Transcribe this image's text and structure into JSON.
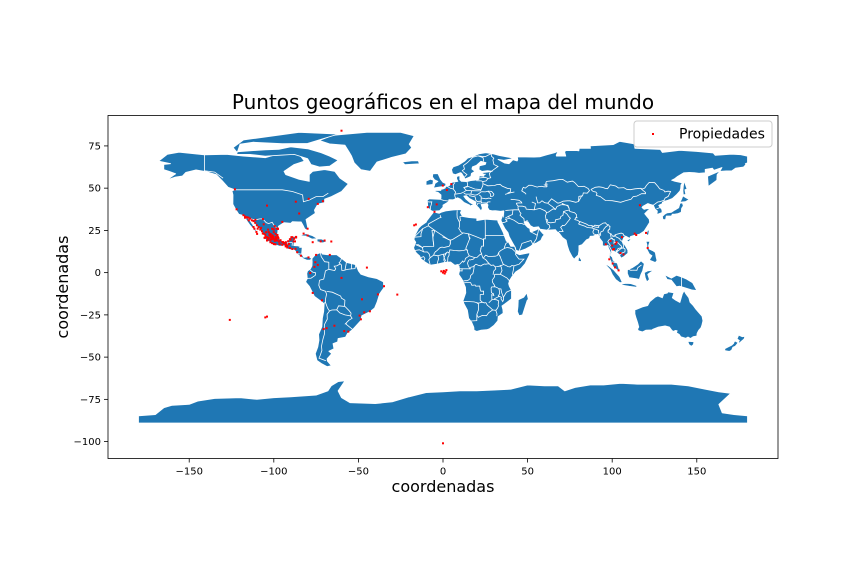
{
  "chart_data": {
    "type": "scatter",
    "title": "Puntos geográficos en el mapa del mundo",
    "xlabel": "coordenadas",
    "ylabel": "coordenadas",
    "xlim": [
      -198,
      198
    ],
    "ylim": [
      -110,
      93
    ],
    "x_ticks": [
      -150,
      -100,
      -50,
      0,
      50,
      100,
      150
    ],
    "y_ticks": [
      75,
      50,
      25,
      0,
      -25,
      -50,
      -75,
      -100
    ],
    "legend": {
      "placement": "top-right",
      "label": "Propiedades"
    },
    "colors": {
      "land": "#1f77b4",
      "borders": "#ffffff",
      "points": "#ff0000"
    },
    "base_map": "world-country-polygons",
    "series": [
      {
        "name": "Propiedades",
        "points": [
          [
            -101,
            21
          ],
          [
            -102,
            22
          ],
          [
            -99,
            19.5
          ],
          [
            -100,
            20
          ],
          [
            -103,
            20.5
          ],
          [
            -98,
            19
          ],
          [
            -100.5,
            21.5
          ],
          [
            -101.5,
            20.2
          ],
          [
            -99.5,
            18.8
          ],
          [
            -98.5,
            20.5
          ],
          [
            -103.5,
            19.8
          ],
          [
            -104,
            21
          ],
          [
            -105,
            22.5
          ],
          [
            -102.5,
            23
          ],
          [
            -100,
            24
          ],
          [
            -106,
            23
          ],
          [
            -107,
            24.5
          ],
          [
            -108,
            25.5
          ],
          [
            -109,
            27
          ],
          [
            -110,
            28
          ],
          [
            -111,
            29.5
          ],
          [
            -112,
            30.5
          ],
          [
            -113,
            31
          ],
          [
            -114,
            32
          ],
          [
            -115,
            32.5
          ],
          [
            -116,
            32.8
          ],
          [
            -117,
            33.2
          ],
          [
            -109.5,
            26
          ],
          [
            -97,
            18.5
          ],
          [
            -96,
            19
          ],
          [
            -96.5,
            17
          ],
          [
            -95,
            18
          ],
          [
            -94,
            17.5
          ],
          [
            -93,
            16.5
          ],
          [
            -92,
            16
          ],
          [
            -91,
            17
          ],
          [
            -90,
            19.5
          ],
          [
            -89,
            21
          ],
          [
            -87,
            21
          ],
          [
            -86.8,
            20.8
          ],
          [
            -88,
            20
          ],
          [
            -98,
            22
          ],
          [
            -97.5,
            21
          ],
          [
            -99,
            23
          ],
          [
            -100,
            25.5
          ],
          [
            -101,
            26
          ],
          [
            -98,
            26
          ],
          [
            -97.5,
            26
          ],
          [
            -102,
            18
          ],
          [
            -101,
            17.5
          ],
          [
            -100,
            17
          ],
          [
            -99,
            16.8
          ],
          [
            -104,
            19
          ],
          [
            -105.5,
            20.6
          ],
          [
            -106.5,
            23.2
          ],
          [
            -103.4,
            25.5
          ],
          [
            -104.5,
            24
          ],
          [
            -106,
            28.6
          ],
          [
            -107.5,
            26.5
          ],
          [
            -100.3,
            25.7
          ],
          [
            -103.3,
            20.7
          ],
          [
            -99.1,
            19.4
          ],
          [
            -98.2,
            19.05
          ],
          [
            -101.7,
            21.1
          ],
          [
            -100.4,
            20.6
          ],
          [
            -102.3,
            21.9
          ],
          [
            -104.9,
            21.5
          ],
          [
            -105.2,
            20.6
          ],
          [
            -96.1,
            19.2
          ],
          [
            -96.7,
            17.1
          ],
          [
            -93.1,
            16.75
          ],
          [
            -92.9,
            17.99
          ],
          [
            -89.6,
            20.97
          ],
          [
            -86.85,
            21.16
          ],
          [
            -117.0,
            32.5
          ],
          [
            -115.5,
            32.6
          ],
          [
            -110.9,
            31.3
          ],
          [
            -106.4,
            31.7
          ],
          [
            -99.5,
            27.5
          ],
          [
            -97.5,
            25.9
          ],
          [
            -98.3,
            26.1
          ],
          [
            -99.2,
            18.9
          ],
          [
            -99.8,
            16.9
          ],
          [
            -98.8,
            20.1
          ],
          [
            -101.2,
            19.7
          ],
          [
            -102.0,
            19.4
          ],
          [
            -103.7,
            19.2
          ],
          [
            -101.9,
            22.8
          ],
          [
            -102.6,
            22.3
          ],
          [
            -97.2,
            20.3
          ],
          [
            -97.9,
            22.3
          ],
          [
            -99.0,
            21.2
          ],
          [
            -100.9,
            22.1
          ],
          [
            -103.0,
            24.0
          ],
          [
            -110.3,
            24.1
          ],
          [
            -109.9,
            22.9
          ],
          [
            -112.0,
            27.0
          ],
          [
            -111.5,
            26.0
          ],
          [
            -114.8,
            31.0
          ],
          [
            -95.0,
            16.5
          ],
          [
            -94.5,
            18.1
          ],
          [
            -92.6,
            16.7
          ],
          [
            -91.5,
            18.6
          ],
          [
            -90.5,
            19.8
          ],
          [
            -87.5,
            18.5
          ],
          [
            -88.3,
            18.5
          ],
          [
            -99.6,
            19.3
          ],
          [
            -98.7,
            19.5
          ],
          [
            -100.7,
            20.9
          ],
          [
            -93,
            15.5
          ],
          [
            -92,
            14.9
          ],
          [
            -90.5,
            14.6
          ],
          [
            -89,
            14
          ],
          [
            -87.2,
            14.1
          ],
          [
            -86.2,
            12.1
          ],
          [
            -84,
            10
          ],
          [
            -79.5,
            9
          ],
          [
            -75,
            10.5
          ],
          [
            -80,
            22
          ],
          [
            -82.4,
            23.1
          ],
          [
            -77,
            18
          ],
          [
            -72.3,
            18.5
          ],
          [
            -66,
            18.4
          ],
          [
            -70,
            19
          ],
          [
            -74,
            4.6
          ],
          [
            -78.5,
            -0.2
          ],
          [
            -77,
            -12
          ],
          [
            -71.5,
            -16.4
          ],
          [
            -76,
            3.4
          ],
          [
            -75.5,
            6.2
          ],
          [
            -66.9,
            10.5
          ],
          [
            -58.4,
            -34.6
          ],
          [
            -56,
            -34.9
          ],
          [
            -64.2,
            -31.4
          ],
          [
            -68.8,
            -32.9
          ],
          [
            -70.6,
            -33.4
          ],
          [
            -43.2,
            -22.9
          ],
          [
            -46.6,
            -23.5
          ],
          [
            -47.9,
            -15.8
          ],
          [
            -49.3,
            -25.4
          ],
          [
            -48.5,
            -27.6
          ],
          [
            -38.5,
            -12.9
          ],
          [
            -34.9,
            -8.05
          ],
          [
            -60,
            -3.1
          ],
          [
            -85,
            35
          ],
          [
            -95,
            30
          ],
          [
            -80,
            26
          ],
          [
            -118,
            34
          ],
          [
            -122,
            37.5
          ],
          [
            -104,
            39.7
          ],
          [
            -74,
            40.7
          ],
          [
            -87,
            42
          ],
          [
            -71,
            42.3
          ],
          [
            -79.4,
            43.7
          ],
          [
            -123,
            49.3
          ],
          [
            -126,
            -28
          ],
          [
            -105,
            -26.5
          ],
          [
            -104,
            -26
          ],
          [
            -27,
            -13
          ],
          [
            -5,
            36
          ],
          [
            -3.7,
            40.4
          ],
          [
            2.3,
            48.9
          ],
          [
            -0.1,
            51.5
          ],
          [
            -9,
            38.7
          ],
          [
            4.9,
            52.4
          ],
          [
            0.5,
            1
          ],
          [
            1.5,
            0.5
          ],
          [
            0,
            0
          ],
          [
            2,
            1.5
          ],
          [
            1,
            -0.5
          ],
          [
            -1,
            0.8
          ],
          [
            -60,
            84
          ],
          [
            -45,
            3
          ],
          [
            0,
            -101
          ],
          [
            -17,
            28
          ],
          [
            -16,
            28.5
          ],
          [
            100.5,
            13.7
          ],
          [
            101,
            14
          ],
          [
            99,
            18.8
          ],
          [
            100,
            16
          ],
          [
            102,
            17
          ],
          [
            98.3,
            7.9
          ],
          [
            100.3,
            5.4
          ],
          [
            101.7,
            3.1
          ],
          [
            103.8,
            1.35
          ],
          [
            106.7,
            10.8
          ],
          [
            105.8,
            21
          ],
          [
            104.9,
            11.6
          ],
          [
            102.6,
            18
          ],
          [
            96.2,
            16.8
          ],
          [
            114.2,
            22.3
          ],
          [
            121,
            14.6
          ],
          [
            113.3,
            23.1
          ],
          [
            120,
            23.5
          ],
          [
            116.4,
            39.9
          ]
        ]
      }
    ]
  }
}
